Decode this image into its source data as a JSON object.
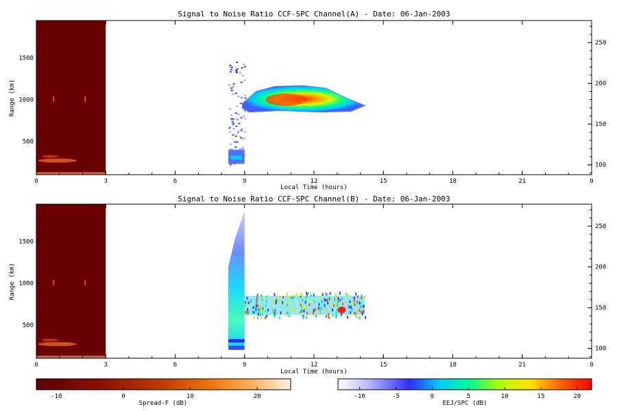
{
  "colors": {
    "axis": "#000000",
    "spread_f_fill": "#6b0000",
    "spread_f_colormap": [
      "#5a0000",
      "#8a0f00",
      "#c23c00",
      "#f07a10",
      "#ffb060",
      "#fff0e0"
    ],
    "eej_colormap": [
      "#ffffff",
      "#b8b8ff",
      "#5050ff",
      "#00c8ff",
      "#00ff90",
      "#b0ff00",
      "#ffe000",
      "#ff6000",
      "#ff0000"
    ]
  },
  "chart_data": [
    {
      "type": "heatmap",
      "title": "Signal to Noise Ratio CCF-SPC Channel(A) - Date: 06-Jan-2003",
      "xlabel": "Local Time (hours)",
      "ylabel": "Range (km)",
      "xlim": [
        0,
        24
      ],
      "xticks": [
        "0",
        "3",
        "6",
        "9",
        "12",
        "15",
        "18",
        "21",
        "0"
      ],
      "ylim": [
        100,
        1950
      ],
      "yticks": [
        "500",
        "1000",
        "1500"
      ],
      "y2lim": [
        88,
        277
      ],
      "y2ticks": [
        "100",
        "150",
        "200",
        "250"
      ],
      "regions": [
        {
          "name": "Spread-F",
          "x": [
            0,
            3
          ],
          "y": [
            100,
            1950
          ],
          "level_db": -12
        },
        {
          "name": "EEJ/SPC",
          "x": [
            8.3,
            14.2
          ],
          "y": [
            850,
            1180
          ],
          "peak_db": 20,
          "peak_x": 10.8,
          "peak_y": 1000
        }
      ]
    },
    {
      "type": "heatmap",
      "title": "Signal to Noise Ratio CCF-SPC Channel(B) - Date: 06-Jan-2003",
      "xlabel": "Local Time (hours)",
      "ylabel": "Range (km)",
      "xlim": [
        0,
        24
      ],
      "xticks": [
        "0",
        "3",
        "6",
        "9",
        "12",
        "15",
        "18",
        "21",
        "0"
      ],
      "ylim": [
        100,
        1950
      ],
      "yticks": [
        "500",
        "1000",
        "1500"
      ],
      "y2lim": [
        88,
        277
      ],
      "y2ticks": [
        "100",
        "150",
        "200",
        "250"
      ],
      "regions": [
        {
          "name": "Spread-F",
          "x": [
            0,
            3
          ],
          "y": [
            100,
            1950
          ],
          "level_db": -12
        },
        {
          "name": "EEJ/SPC",
          "x": [
            8.3,
            14.2
          ],
          "y": [
            600,
            1800
          ],
          "peak_db": 22,
          "peak_x": 13.2,
          "peak_y": 680
        }
      ]
    }
  ],
  "colorbars": [
    {
      "label": "Spread-F (dB)",
      "range": [
        -13,
        25
      ],
      "ticks": [
        "-10",
        "0",
        "10",
        "20"
      ]
    },
    {
      "label": "EEJ/SPC (dB)",
      "range": [
        -13,
        22
      ],
      "ticks": [
        "-10",
        "-5",
        "0",
        "5",
        "10",
        "15",
        "20"
      ]
    }
  ]
}
